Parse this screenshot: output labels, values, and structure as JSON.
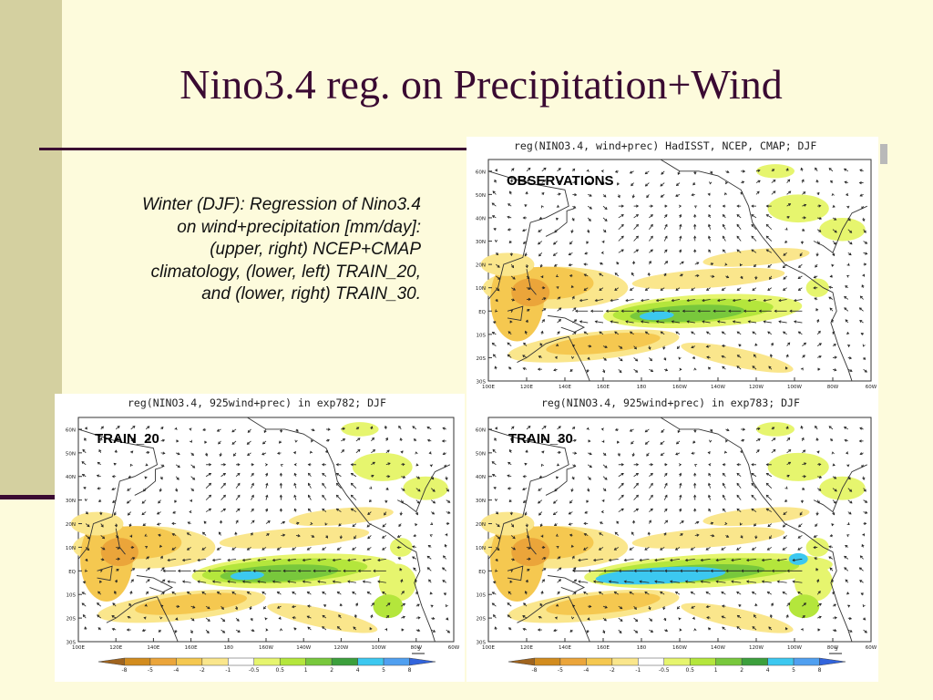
{
  "slide": {
    "title": "Nino3.4 reg. on Precipitation+Wind",
    "caption": "Winter (DJF): Regression of Nino3.4 on wind+precipitation [mm/day]: (upper, right) NCEP+CMAP climatology, (lower, left) TRAIN_20, and (lower, right) TRAIN_30."
  },
  "colors": {
    "background": "#fdfbdc",
    "accent": "#3a0a32",
    "band": "#d4d0a0"
  },
  "panels": [
    {
      "id": "observations",
      "header": "reg(NINO3.4, wind+prec) HadISST, NCEP, CMAP; DJF",
      "label": "OBSERVATIONS",
      "show_colorbar": false
    },
    {
      "id": "train20",
      "header": "reg(NINO3.4, 925wind+prec) in exp782; DJF",
      "label": "TRAIN_20",
      "show_colorbar": true
    },
    {
      "id": "train30",
      "header": "reg(NINO3.4, 925wind+prec) in exp783; DJF",
      "label": "TRAIN_30",
      "show_colorbar": true
    }
  ],
  "map_axes": {
    "lat_ticks": [
      "60N",
      "50N",
      "40N",
      "30N",
      "20N",
      "10N",
      "EQ",
      "10S",
      "20S",
      "30S"
    ],
    "lon_ticks": [
      "100E",
      "120E",
      "140E",
      "160E",
      "180",
      "160W",
      "140W",
      "120W",
      "100W",
      "80W",
      "60W"
    ]
  },
  "colorbar": {
    "ticks": [
      "-8",
      "-5",
      "-4",
      "-2",
      "-1",
      "-0.5",
      "0.5",
      "1",
      "2",
      "4",
      "5",
      "8"
    ],
    "colors": [
      "#a0641e",
      "#d28c1e",
      "#eba53a",
      "#f5c850",
      "#fae68c",
      "#ffffff",
      "#e6f56e",
      "#b4e63c",
      "#78c83c",
      "#3ca03c",
      "#3cc8f0",
      "#50a0f0",
      "#3264dc"
    ],
    "vector_reference": "3"
  }
}
